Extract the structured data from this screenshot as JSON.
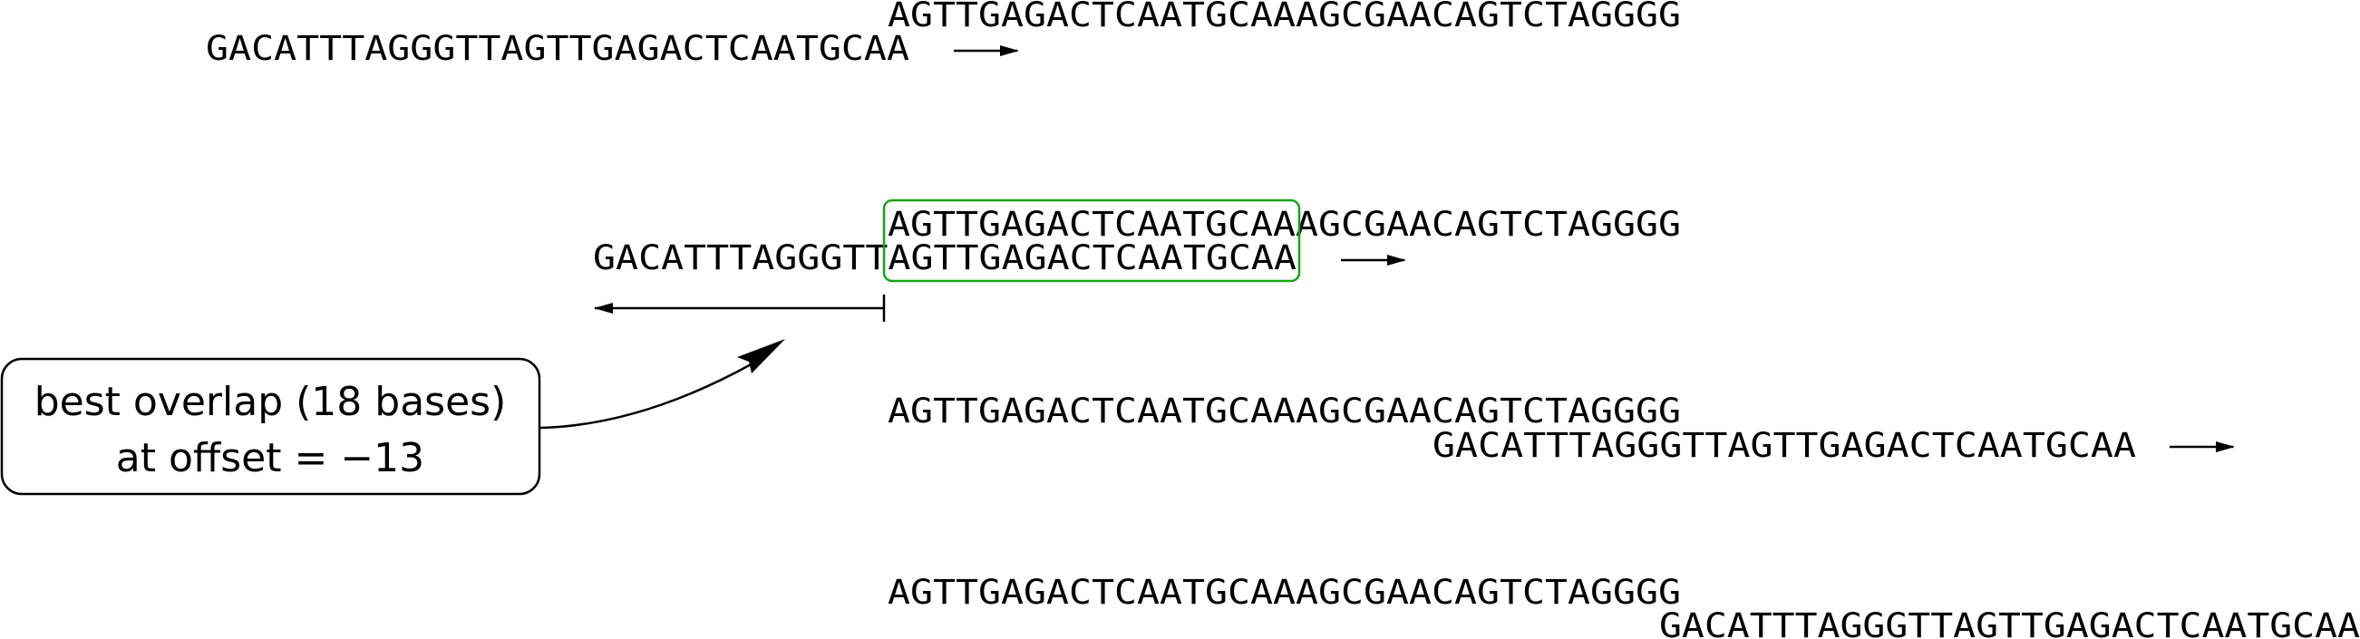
{
  "sequences": {
    "reference": "AGTTGAGACTCAATGCAAAGCGAACAGTCTAGGGG",
    "query": "GACATTTAGGGTTAGTTGAGACTCAATGCAA"
  },
  "callout": {
    "line1": "best overlap (18 bases)",
    "line2": "at offset = −13"
  },
  "highlight_color": "#1aa31a",
  "icons": {
    "arrow": "right-arrow-icon",
    "offset_bar": "left-arrow-with-bar-icon"
  }
}
